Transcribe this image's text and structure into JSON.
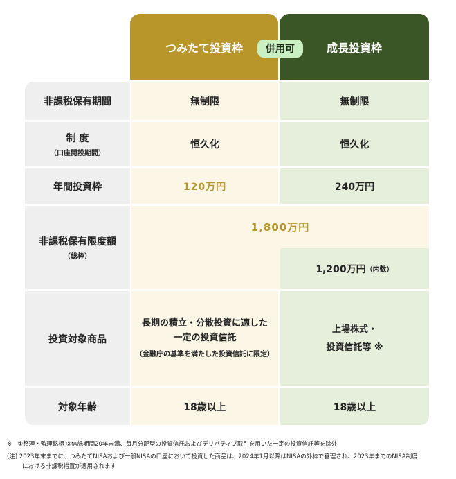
{
  "header": {
    "tsumitate": "つみたて投資枠",
    "growth": "成長投資枠",
    "combined_badge": "併用可"
  },
  "colors": {
    "tsumitate": "#b8962a",
    "growth": "#3a5626",
    "badge": "#c8f0c2"
  },
  "rows": {
    "period": {
      "label": "非課税保有期間",
      "tsumitate": "無制限",
      "growth": "無制限"
    },
    "system": {
      "label": "制 度",
      "sublabel": "（口座開設期間）",
      "tsumitate": "恒久化",
      "growth": "恒久化"
    },
    "annual": {
      "label": "年間投資枠",
      "tsumitate": "120万円",
      "growth": "240万円"
    },
    "limit": {
      "label": "非課税保有限度額",
      "sublabel": "（総枠）",
      "total": "1,800万円",
      "growth": "1,200万円",
      "growth_note": "（内数）"
    },
    "products": {
      "label": "投資対象商品",
      "tsumitate_line1": "長期の積立・分散投資に適した",
      "tsumitate_line2": "一定の投資信託",
      "tsumitate_note": "（金融庁の基準を満たした投資信託に限定）",
      "growth_line1": "上場株式・",
      "growth_line2": "投資信託等 ※"
    },
    "age": {
      "label": "対象年齢",
      "tsumitate": "18歳以上",
      "growth": "18歳以上"
    }
  },
  "notes": {
    "asterisk": "※　①整理・監理銘柄 ②信託期間20年未満、毎月分配型の投資信託およびデリバティブ取引を用いた一定の投資信託等を除外",
    "note1": "(注) 2023年末までに、つみたてNISAおよび一般NISAの口座において投資した商品は、2024年1月以降はNISAの外枠で管理され、2023年までのNISA制度",
    "note2": "における非課税措置が適用されます"
  }
}
